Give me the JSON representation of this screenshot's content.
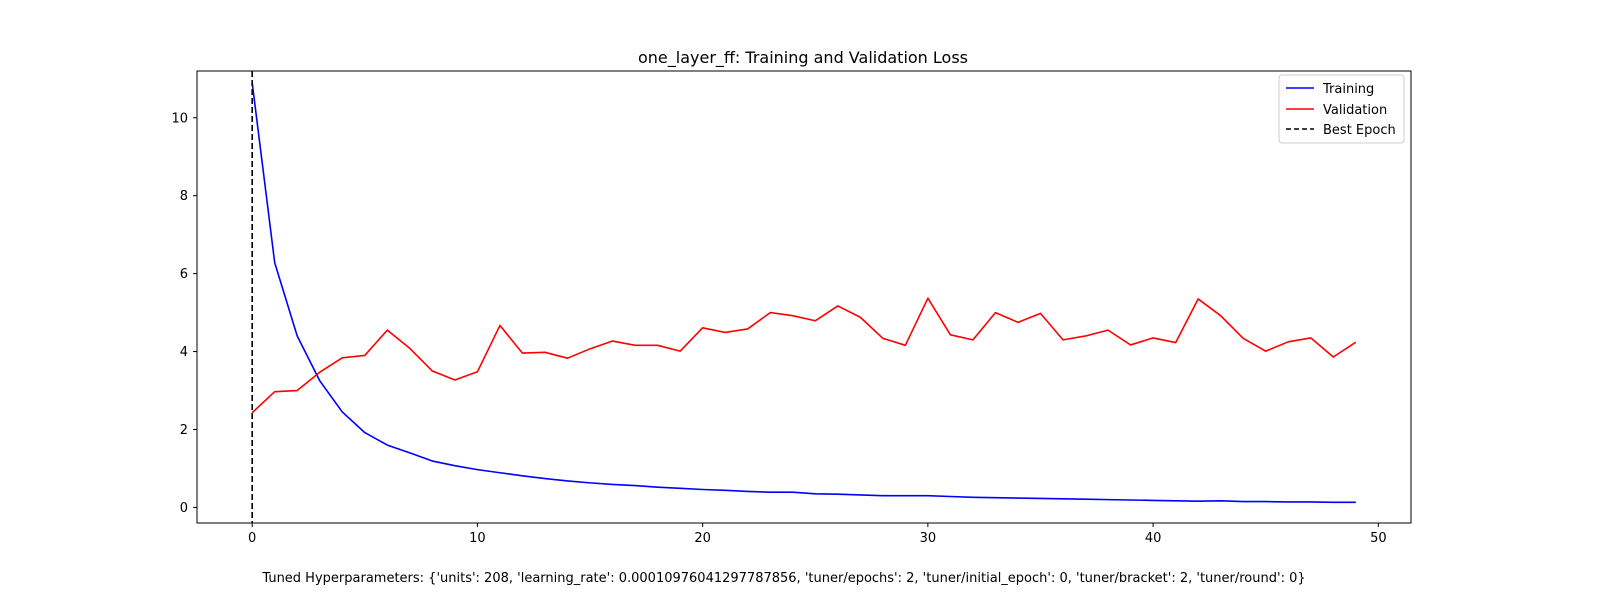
{
  "chart_data": {
    "type": "line",
    "title": "one_layer_ff: Training and Validation Loss",
    "xlabel": "",
    "ylabel": "",
    "xlim": [
      -2.45,
      51.45
    ],
    "ylim": [
      -0.4,
      11.2
    ],
    "xticks": [
      0,
      10,
      20,
      30,
      40,
      50
    ],
    "yticks": [
      0,
      2,
      4,
      6,
      8,
      10
    ],
    "grid": false,
    "legend_position": "top-right",
    "x": [
      0,
      1,
      2,
      3,
      4,
      5,
      6,
      7,
      8,
      9,
      10,
      11,
      12,
      13,
      14,
      15,
      16,
      17,
      18,
      19,
      20,
      21,
      22,
      23,
      24,
      25,
      26,
      27,
      28,
      29,
      30,
      31,
      32,
      33,
      34,
      35,
      36,
      37,
      38,
      39,
      40,
      41,
      42,
      43,
      44,
      45,
      46,
      47,
      48,
      49
    ],
    "series": [
      {
        "name": "Training",
        "color": "#0000ff",
        "values": [
          10.9,
          6.28,
          4.4,
          3.25,
          2.45,
          1.92,
          1.6,
          1.4,
          1.19,
          1.07,
          0.97,
          0.89,
          0.81,
          0.74,
          0.68,
          0.63,
          0.59,
          0.56,
          0.52,
          0.49,
          0.46,
          0.44,
          0.41,
          0.39,
          0.39,
          0.35,
          0.34,
          0.32,
          0.3,
          0.3,
          0.3,
          0.28,
          0.26,
          0.25,
          0.24,
          0.23,
          0.22,
          0.21,
          0.2,
          0.19,
          0.18,
          0.17,
          0.16,
          0.17,
          0.15,
          0.15,
          0.14,
          0.14,
          0.13,
          0.13
        ]
      },
      {
        "name": "Validation",
        "color": "#ff0000",
        "values": [
          2.43,
          2.97,
          3.0,
          3.47,
          3.84,
          3.9,
          4.55,
          4.08,
          3.5,
          3.27,
          3.48,
          4.67,
          3.96,
          3.98,
          3.83,
          4.07,
          4.27,
          4.16,
          4.16,
          4.01,
          4.61,
          4.49,
          4.58,
          5.0,
          4.92,
          4.79,
          5.17,
          4.88,
          4.34,
          4.16,
          5.37,
          4.43,
          4.3,
          5.0,
          4.75,
          4.98,
          4.3,
          4.4,
          4.55,
          4.17,
          4.35,
          4.23,
          5.35,
          4.92,
          4.34,
          4.01,
          4.25,
          4.35,
          3.86,
          4.24
        ]
      }
    ],
    "best_epoch": {
      "name": "Best Epoch",
      "x": 0,
      "color": "#000000"
    },
    "footer": "Tuned Hyperparameters: {'units': 208, 'learning_rate': 0.00010976041297787856, 'tuner/epochs': 2, 'tuner/initial_epoch': 0, 'tuner/bracket': 2, 'tuner/round': 0}"
  }
}
